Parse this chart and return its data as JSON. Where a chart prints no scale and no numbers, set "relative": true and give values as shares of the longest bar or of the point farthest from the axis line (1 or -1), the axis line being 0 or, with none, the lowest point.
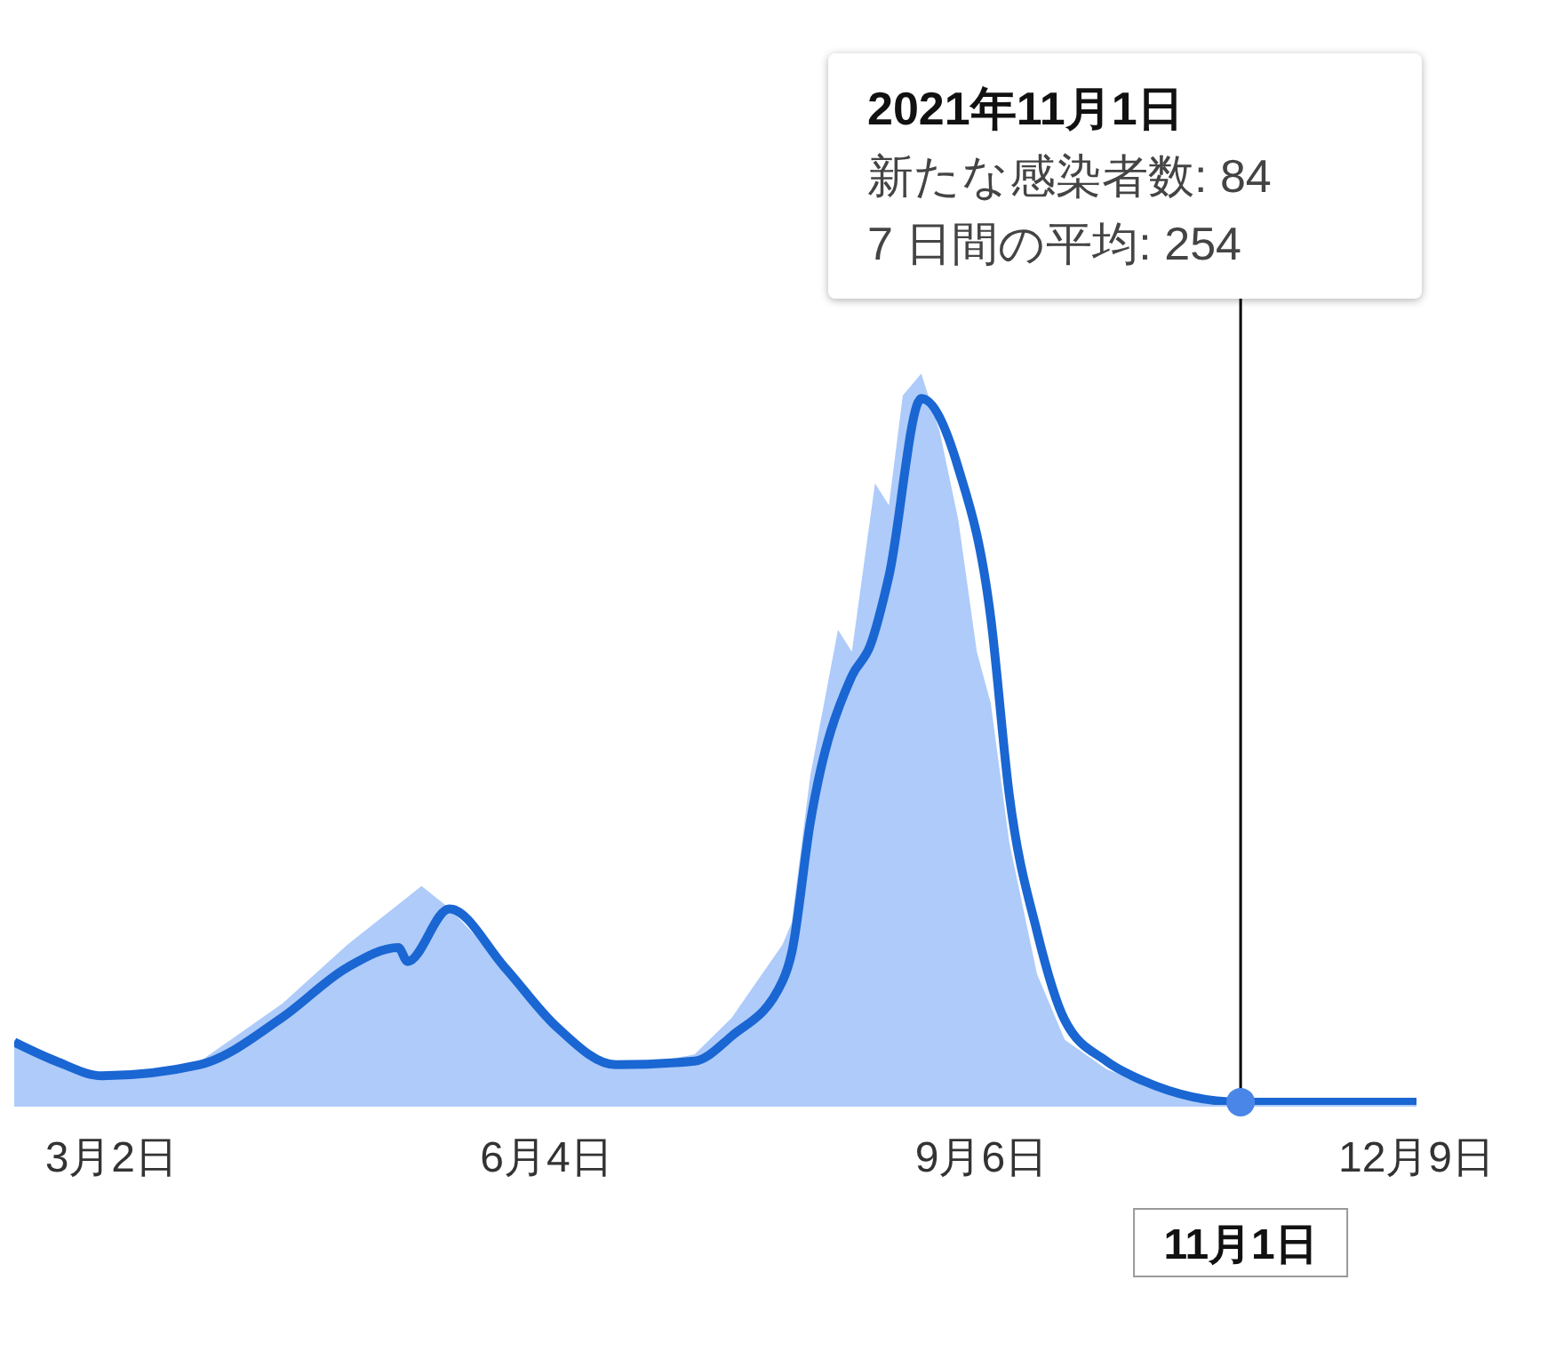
{
  "chart_data": {
    "type": "line",
    "relative": true,
    "marker": "none",
    "line_style": "solid",
    "xlim": [
      "2021-02-09",
      "2021-12-09"
    ],
    "xticks": [
      {
        "value": "2021-03-02",
        "label": "3月2日"
      },
      {
        "value": "2021-06-04",
        "label": "6月4日"
      },
      {
        "value": "2021-09-06",
        "label": "9月6日"
      },
      {
        "value": "2021-12-09",
        "label": "12月9日"
      }
    ],
    "series": [
      {
        "type": "area",
        "color": "#aecbfa",
        "x": [
          "2021-02-09",
          "2021-02-18",
          "2021-02-28",
          "2021-03-21",
          "2021-04-08",
          "2021-04-22",
          "2021-04-28",
          "2021-05-08",
          "2021-05-14",
          "2021-05-26",
          "2021-06-06",
          "2021-06-19",
          "2021-07-06",
          "2021-07-14",
          "2021-07-25",
          "2021-07-27",
          "2021-07-31",
          "2021-08-06",
          "2021-08-09",
          "2021-08-14",
          "2021-08-17",
          "2021-08-20",
          "2021-08-24",
          "2021-08-28",
          "2021-09-01",
          "2021-09-05",
          "2021-09-08",
          "2021-09-12",
          "2021-09-18",
          "2021-09-24",
          "2021-10-03",
          "2021-10-11",
          "2021-11-01",
          "2021-11-11",
          "2021-12-09"
        ],
        "values": [
          0.09,
          0.065,
          0.04,
          0.06,
          0.14,
          0.22,
          0.25,
          0.3,
          0.27,
          0.19,
          0.11,
          0.05,
          0.07,
          0.12,
          0.22,
          0.25,
          0.45,
          0.65,
          0.62,
          0.85,
          0.82,
          0.97,
          1.0,
          0.92,
          0.8,
          0.62,
          0.55,
          0.36,
          0.18,
          0.09,
          0.05,
          0.03,
          0.004,
          0.004,
          0.004
        ]
      },
      {
        "color": "#1a66d2",
        "x": [
          "2021-02-09",
          "2021-02-18",
          "2021-02-28",
          "2021-03-21",
          "2021-04-08",
          "2021-04-22",
          "2021-05-03",
          "2021-05-05",
          "2021-05-14",
          "2021-05-26",
          "2021-06-06",
          "2021-06-19",
          "2021-07-06",
          "2021-07-14",
          "2021-07-25",
          "2021-07-27",
          "2021-07-31",
          "2021-08-09",
          "2021-08-13",
          "2021-08-17",
          "2021-08-24",
          "2021-09-01",
          "2021-09-08",
          "2021-09-12",
          "2021-09-18",
          "2021-09-24",
          "2021-10-03",
          "2021-10-11",
          "2021-11-01",
          "2021-11-11",
          "2021-12-09"
        ],
        "values": [
          0.087,
          0.061,
          0.041,
          0.056,
          0.121,
          0.189,
          0.216,
          0.197,
          0.269,
          0.189,
          0.109,
          0.056,
          0.061,
          0.095,
          0.17,
          0.209,
          0.386,
          0.587,
          0.629,
          0.723,
          0.966,
          0.871,
          0.667,
          0.425,
          0.238,
          0.117,
          0.061,
          0.034,
          0.005,
          0.005,
          0.005
        ]
      }
    ],
    "ref_lines": [
      {
        "axis": "x",
        "value": "2021-11-01",
        "label": "11月1日",
        "color": "#000000"
      }
    ],
    "annotations": [
      "2021年11月1日",
      "新たな感染者数: 84",
      "7 日間の平均: 254"
    ]
  }
}
